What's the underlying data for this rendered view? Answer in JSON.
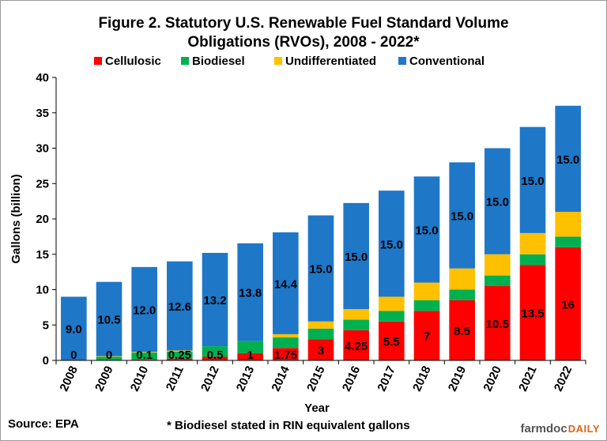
{
  "chart_data": {
    "type": "bar",
    "stacked": true,
    "title_line1": "Figure 2. Statutory U.S. Renewable Fuel Standard Volume",
    "title_line2": "Obligations (RVOs), 2008 - 2022*",
    "xlabel": "Year",
    "ylabel": "Gallons (billion)",
    "ylim": [
      0,
      40
    ],
    "yticks": [
      "0",
      "5",
      "10",
      "15",
      "20",
      "25",
      "30",
      "35",
      "40"
    ],
    "grid": false,
    "legend_position": "top",
    "categories": [
      "2008",
      "2009",
      "2010",
      "2011",
      "2012",
      "2013",
      "2014",
      "2015",
      "2016",
      "2017",
      "2018",
      "2019",
      "2020",
      "2021",
      "2022"
    ],
    "series": [
      {
        "name": "Cellulosic",
        "color": "#ff0000",
        "values": [
          0,
          0,
          0.1,
          0.25,
          0.5,
          1,
          1.75,
          3,
          4.25,
          5.5,
          7,
          8.5,
          10.5,
          13.5,
          16
        ],
        "labels": [
          "0",
          "0",
          "0.1",
          "0.25",
          "0.5",
          "1",
          "1.75",
          "3",
          "4.25",
          "5.5",
          "7",
          "8.5",
          "10.5",
          "13.5",
          "16"
        ]
      },
      {
        "name": "Biodiesel",
        "color": "#00b050",
        "values": [
          0,
          0.5,
          1,
          1,
          1.5,
          1.75,
          1.5,
          1.5,
          1.5,
          1.5,
          1.5,
          1.5,
          1.5,
          1.5,
          1.5
        ]
      },
      {
        "name": "Undifferentiated",
        "color": "#ffc000",
        "values": [
          0,
          0.1,
          0.1,
          0.15,
          0,
          0,
          0.45,
          1,
          1.5,
          2,
          2.5,
          3,
          3,
          3,
          3.5
        ]
      },
      {
        "name": "Conventional",
        "color": "#1f77c8",
        "values": [
          9,
          10.5,
          12,
          12.6,
          13.2,
          13.8,
          14.4,
          15,
          15,
          15,
          15,
          15,
          15,
          15,
          15
        ],
        "labels": [
          "9.0",
          "10.5",
          "12.0",
          "12.6",
          "13.2",
          "13.8",
          "14.4",
          "15.0",
          "15.0",
          "15.0",
          "15.0",
          "15.0",
          "15.0",
          "15.0",
          "15.0"
        ]
      }
    ]
  },
  "footer": {
    "source": "Source: EPA",
    "note": "* Biodiesel stated in RIN equivalent gallons",
    "brand_part1": "farmdoc",
    "brand_part2": "DAILY"
  }
}
